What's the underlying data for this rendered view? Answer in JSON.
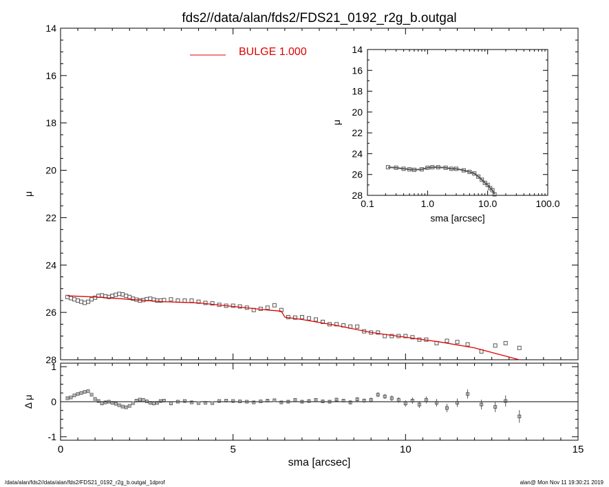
{
  "colors": {
    "fit": "#e00000",
    "points": "#555555",
    "axis": "#000000"
  },
  "footer": {
    "left": "/data/alan/fds2//data/alan/fds2/FDS21_0192_r2g_b.outgal_1dprof",
    "right": "alan@  Mon Nov 11 19:30:21 2019"
  },
  "chart_data": [
    {
      "id": "main",
      "type": "scatter",
      "title": "fds2//data/alan/fds2/FDS21_0192_r2g_b.outgal",
      "xlabel": "",
      "ylabel": "μ",
      "xlim": [
        0,
        15
      ],
      "ylim": [
        28,
        14
      ],
      "y_inverted": true,
      "yticks": [
        14,
        16,
        18,
        20,
        22,
        24,
        26,
        28
      ],
      "legend": {
        "label": "BULGE  1.000",
        "placement": "top-center"
      },
      "series": [
        {
          "name": "",
          "kind": "points",
          "x": [
            0.2,
            0.3,
            0.4,
            0.5,
            0.6,
            0.7,
            0.8,
            0.9,
            1.0,
            1.1,
            1.2,
            1.3,
            1.4,
            1.5,
            1.6,
            1.7,
            1.8,
            1.9,
            2.0,
            2.1,
            2.2,
            2.3,
            2.4,
            2.5,
            2.6,
            2.7,
            2.8,
            2.9,
            3.0,
            3.2,
            3.4,
            3.6,
            3.8,
            4.0,
            4.2,
            4.4,
            4.6,
            4.8,
            5.0,
            5.2,
            5.4,
            5.6,
            5.8,
            6.0,
            6.2,
            6.4,
            6.6,
            6.8,
            7.0,
            7.2,
            7.4,
            7.6,
            7.8,
            8.0,
            8.2,
            8.4,
            8.6,
            8.8,
            9.0,
            9.2,
            9.4,
            9.6,
            9.8,
            10.0,
            10.2,
            10.4,
            10.6,
            10.9,
            11.2,
            11.5,
            11.8,
            12.2,
            12.6,
            12.9,
            13.3
          ],
          "y": [
            25.35,
            25.4,
            25.45,
            25.5,
            25.55,
            25.6,
            25.55,
            25.45,
            25.38,
            25.3,
            25.28,
            25.32,
            25.35,
            25.3,
            25.26,
            25.22,
            25.24,
            25.3,
            25.35,
            25.42,
            25.46,
            25.5,
            25.48,
            25.44,
            25.42,
            25.46,
            25.5,
            25.5,
            25.48,
            25.45,
            25.5,
            25.5,
            25.5,
            25.55,
            25.6,
            25.62,
            25.68,
            25.72,
            25.72,
            25.75,
            25.8,
            25.9,
            25.85,
            25.8,
            25.7,
            25.9,
            26.2,
            26.22,
            26.2,
            26.25,
            26.3,
            26.4,
            26.5,
            26.5,
            26.55,
            26.6,
            26.6,
            26.8,
            26.85,
            26.85,
            27.0,
            27.0,
            27.0,
            27.0,
            27.05,
            27.15,
            27.15,
            27.3,
            27.2,
            27.25,
            27.35,
            27.65,
            27.4,
            27.3,
            27.5
          ]
        },
        {
          "name": "BULGE  1.000",
          "kind": "line",
          "x": [
            0.2,
            1.0,
            2.0,
            3.0,
            4.0,
            5.0,
            6.0,
            6.4,
            6.5,
            7.0,
            8.0,
            9.0,
            10.0,
            11.0,
            12.0,
            13.3
          ],
          "y": [
            25.3,
            25.35,
            25.45,
            25.55,
            25.6,
            25.75,
            25.9,
            25.95,
            26.2,
            26.3,
            26.55,
            26.85,
            27.05,
            27.25,
            27.5,
            28.0
          ]
        }
      ]
    },
    {
      "id": "inset",
      "type": "scatter",
      "title": "",
      "xlabel": "sma [arcsec]",
      "ylabel": "μ",
      "xscale": "log",
      "xlim": [
        0.1,
        100.0
      ],
      "xticklabels": [
        "0.1",
        "1.0",
        "10.0",
        "100.0"
      ],
      "ylim": [
        28,
        14
      ],
      "y_inverted": true,
      "yticks": [
        14,
        16,
        18,
        20,
        22,
        24,
        26,
        28
      ],
      "series": [
        {
          "name": "",
          "kind": "points+line",
          "x": [
            0.22,
            0.3,
            0.4,
            0.5,
            0.6,
            0.8,
            1.0,
            1.2,
            1.5,
            2.0,
            2.5,
            3.0,
            4.0,
            5.0,
            6.0,
            7.0,
            8.0,
            9.0,
            10.0,
            11.0,
            12.0,
            13.0
          ],
          "y": [
            25.3,
            25.35,
            25.45,
            25.5,
            25.55,
            25.5,
            25.35,
            25.3,
            25.3,
            25.35,
            25.45,
            25.45,
            25.6,
            25.75,
            25.9,
            26.2,
            26.5,
            26.8,
            27.0,
            27.3,
            27.5,
            27.9
          ]
        }
      ]
    },
    {
      "id": "residual",
      "type": "scatter",
      "xlabel": "sma [arcsec]",
      "ylabel": "Δ μ",
      "xlim": [
        0,
        15
      ],
      "ylim": [
        -1.1,
        1.1
      ],
      "xticks": [
        0,
        5,
        10,
        15
      ],
      "yticks": [
        -1,
        0,
        1
      ],
      "zero_line": true,
      "series": [
        {
          "name": "",
          "kind": "points+errorbars",
          "x": [
            0.2,
            0.3,
            0.4,
            0.5,
            0.6,
            0.7,
            0.8,
            0.9,
            1.0,
            1.1,
            1.2,
            1.3,
            1.4,
            1.5,
            1.6,
            1.7,
            1.8,
            1.9,
            2.0,
            2.1,
            2.2,
            2.3,
            2.4,
            2.5,
            2.6,
            2.7,
            2.8,
            2.9,
            3.0,
            3.2,
            3.4,
            3.6,
            3.8,
            4.0,
            4.2,
            4.4,
            4.6,
            4.8,
            5.0,
            5.2,
            5.4,
            5.6,
            5.8,
            6.0,
            6.2,
            6.4,
            6.6,
            6.8,
            7.0,
            7.2,
            7.4,
            7.6,
            7.8,
            8.0,
            8.2,
            8.4,
            8.6,
            8.8,
            9.0,
            9.2,
            9.4,
            9.6,
            9.8,
            10.0,
            10.2,
            10.4,
            10.6,
            10.9,
            11.2,
            11.5,
            11.8,
            12.2,
            12.6,
            12.9,
            13.3
          ],
          "y": [
            0.1,
            0.12,
            0.18,
            0.22,
            0.25,
            0.28,
            0.3,
            0.2,
            0.08,
            0.02,
            -0.05,
            -0.02,
            0.0,
            -0.03,
            -0.06,
            -0.1,
            -0.14,
            -0.16,
            -0.12,
            -0.04,
            0.03,
            0.06,
            0.05,
            0.01,
            -0.03,
            -0.05,
            -0.03,
            0.02,
            0.03,
            -0.05,
            0.0,
            0.02,
            -0.02,
            -0.04,
            -0.03,
            -0.04,
            0.02,
            0.03,
            0.02,
            0.01,
            0.0,
            -0.02,
            0.01,
            0.03,
            0.04,
            -0.02,
            0.0,
            0.05,
            0.0,
            0.02,
            0.05,
            0.01,
            0.0,
            0.06,
            0.03,
            -0.02,
            0.07,
            0.03,
            0.05,
            0.2,
            0.15,
            0.1,
            0.05,
            -0.05,
            0.03,
            -0.08,
            0.05,
            -0.03,
            -0.18,
            -0.03,
            0.22,
            -0.08,
            -0.15,
            0.02,
            -0.42
          ],
          "err": [
            0.02,
            0.02,
            0.02,
            0.02,
            0.02,
            0.02,
            0.02,
            0.02,
            0.02,
            0.02,
            0.02,
            0.02,
            0.02,
            0.02,
            0.02,
            0.02,
            0.02,
            0.02,
            0.02,
            0.02,
            0.02,
            0.02,
            0.02,
            0.02,
            0.02,
            0.02,
            0.02,
            0.02,
            0.02,
            0.02,
            0.02,
            0.02,
            0.02,
            0.02,
            0.02,
            0.02,
            0.02,
            0.02,
            0.02,
            0.02,
            0.02,
            0.02,
            0.02,
            0.03,
            0.03,
            0.03,
            0.03,
            0.04,
            0.04,
            0.04,
            0.04,
            0.05,
            0.05,
            0.05,
            0.05,
            0.06,
            0.06,
            0.06,
            0.07,
            0.07,
            0.07,
            0.08,
            0.08,
            0.09,
            0.09,
            0.1,
            0.1,
            0.11,
            0.12,
            0.12,
            0.13,
            0.14,
            0.15,
            0.16,
            0.18
          ]
        }
      ]
    }
  ]
}
